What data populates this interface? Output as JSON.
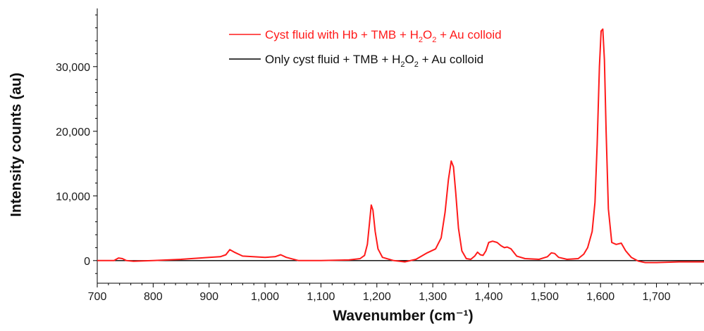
{
  "chart_data": {
    "type": "line",
    "title": "",
    "xlabel": "Wavenumber (cm⁻¹)",
    "ylabel": "Intensity counts (au)",
    "xlim": [
      700,
      1785
    ],
    "ylim": [
      -3500,
      39000
    ],
    "x_ticks": [
      700,
      800,
      900,
      1000,
      1100,
      1200,
      1300,
      1400,
      1500,
      1600,
      1700
    ],
    "x_tick_labels": [
      "700",
      "800",
      "900",
      "1,000",
      "1,100",
      "1,200",
      "1,300",
      "1,400",
      "1,500",
      "1,600",
      "1,700"
    ],
    "y_ticks": [
      0,
      10000,
      20000,
      30000
    ],
    "y_tick_labels": [
      "0",
      "10,000",
      "20,000",
      "30,000"
    ],
    "grid": false,
    "legend_position": "top-center",
    "series": [
      {
        "name": "Cyst fluid with Hb + TMB + H2O2 + Au colloid",
        "color": "#ff1a1a",
        "x": [
          700,
          730,
          738,
          745,
          752,
          765,
          800,
          850,
          900,
          920,
          930,
          937,
          945,
          960,
          1000,
          1018,
          1028,
          1038,
          1060,
          1100,
          1150,
          1170,
          1178,
          1183,
          1187,
          1190,
          1193,
          1197,
          1202,
          1210,
          1230,
          1250,
          1270,
          1290,
          1305,
          1315,
          1322,
          1328,
          1333,
          1337,
          1341,
          1346,
          1352,
          1360,
          1368,
          1375,
          1380,
          1385,
          1390,
          1395,
          1400,
          1407,
          1415,
          1422,
          1428,
          1433,
          1440,
          1450,
          1465,
          1490,
          1505,
          1512,
          1518,
          1525,
          1540,
          1560,
          1570,
          1577,
          1585,
          1590,
          1594,
          1598,
          1601,
          1604,
          1607,
          1610,
          1614,
          1620,
          1628,
          1637,
          1645,
          1655,
          1668,
          1680,
          1700,
          1740,
          1785
        ],
        "y": [
          0,
          0,
          400,
          300,
          0,
          -100,
          0,
          200,
          500,
          600,
          900,
          1700,
          1300,
          700,
          500,
          600,
          900,
          500,
          0,
          0,
          100,
          300,
          800,
          2500,
          6000,
          8600,
          7800,
          4500,
          1800,
          500,
          0,
          -200,
          200,
          1200,
          1800,
          3500,
          7500,
          12500,
          15400,
          14500,
          10500,
          5000,
          1500,
          300,
          200,
          700,
          1300,
          900,
          800,
          1500,
          2800,
          3000,
          2800,
          2300,
          2000,
          2100,
          1800,
          700,
          300,
          200,
          600,
          1200,
          1100,
          500,
          200,
          300,
          1000,
          2000,
          4500,
          9000,
          18000,
          30000,
          35500,
          35800,
          31000,
          20000,
          8000,
          2800,
          2500,
          2700,
          1500,
          500,
          -100,
          -300,
          -300,
          -200,
          -200
        ]
      },
      {
        "name": "Only cyst fluid + TMB + H2O2 + Au colloid",
        "color": "#000000",
        "x": [
          700,
          1785
        ],
        "y": [
          0,
          0
        ]
      }
    ],
    "legend": {
      "red_label_pre": "Cyst fluid with Hb + TMB + H",
      "red_sub1": "2",
      "red_mid": "O",
      "red_sub2": "2",
      "red_post": " + Au colloid",
      "black_label_pre": "Only cyst fluid + TMB + H",
      "black_sub1": "2",
      "black_mid": "O",
      "black_sub2": "2",
      "black_post": " + Au colloid"
    }
  }
}
